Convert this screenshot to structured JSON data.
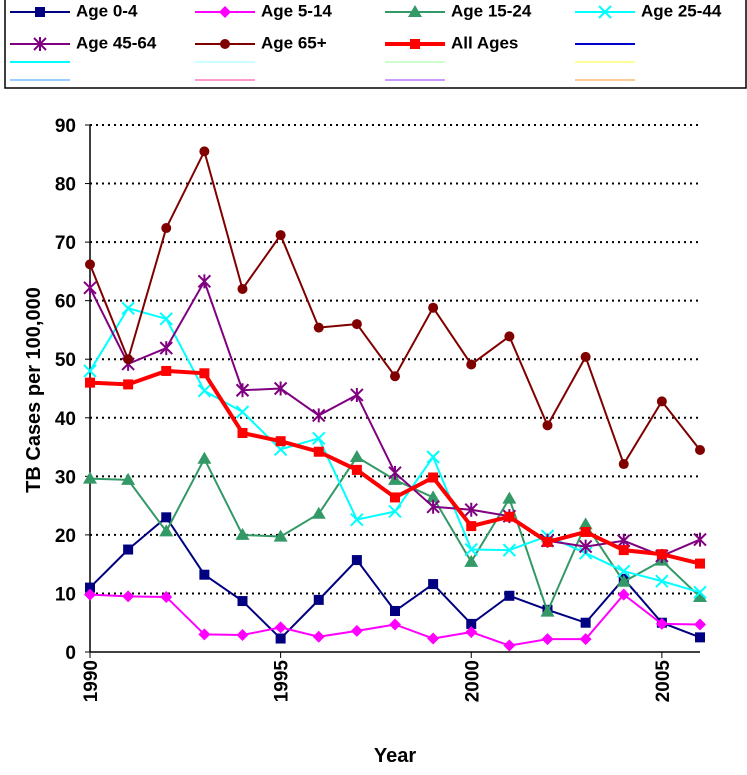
{
  "chart_data": {
    "type": "line",
    "x_label": "Year",
    "y_label": "TB Cases per 100,000",
    "x": [
      1990,
      1991,
      1992,
      1993,
      1994,
      1995,
      1996,
      1997,
      1998,
      1999,
      2000,
      2001,
      2002,
      2003,
      2004,
      2005,
      2006
    ],
    "xlim": [
      1990,
      2006
    ],
    "xticks": [
      1990,
      1995,
      2000,
      2005
    ],
    "ylim": [
      0,
      90
    ],
    "yticks": [
      0,
      10,
      20,
      30,
      40,
      50,
      60,
      70,
      80,
      90
    ],
    "grid": true,
    "series": [
      {
        "name": "Age 0-4",
        "color": "#000080",
        "marker": "square",
        "values": [
          11,
          17.5,
          23,
          13.2,
          8.7,
          2.3,
          8.9,
          15.7,
          7,
          11.6,
          4.8,
          9.6,
          7.2,
          5,
          12.5,
          5,
          2.5
        ]
      },
      {
        "name": "Age 5-14",
        "color": "#ff00ff",
        "marker": "diamond",
        "values": [
          9.8,
          9.5,
          9.4,
          3,
          2.9,
          4.2,
          2.6,
          3.6,
          4.7,
          2.3,
          3.4,
          1.1,
          2.2,
          2.2,
          9.8,
          4.8,
          4.7
        ]
      },
      {
        "name": "Age 15-24",
        "color": "#339966",
        "marker": "triangle",
        "values": [
          29.6,
          29.4,
          20.6,
          33,
          20,
          19.7,
          23.6,
          33.3,
          29.4,
          26.4,
          15.4,
          26.2,
          6.9,
          21.8,
          12,
          15.6,
          9.4
        ]
      },
      {
        "name": "Age 25-44",
        "color": "#00ffff",
        "marker": "x",
        "values": [
          48,
          58.7,
          56.9,
          44.6,
          41,
          34.6,
          36.5,
          22.6,
          24,
          33.3,
          17.5,
          17.4,
          19.8,
          16.9,
          13.8,
          12.1,
          10.2
        ]
      },
      {
        "name": "Age 45-64",
        "color": "#800080",
        "marker": "star",
        "values": [
          62.2,
          49.2,
          51.9,
          63.3,
          44.7,
          45,
          40.4,
          43.9,
          30.6,
          24.8,
          24.3,
          23.2,
          19,
          18,
          19,
          16.4,
          19.2
        ]
      },
      {
        "name": "Age 65+",
        "color": "#800000",
        "marker": "circle",
        "values": [
          66.2,
          50,
          72.4,
          85.5,
          62,
          71.2,
          55.4,
          56,
          47.1,
          58.8,
          49.1,
          53.9,
          38.7,
          50.4,
          32.1,
          42.8,
          34.5
        ]
      },
      {
        "name": "All Ages",
        "color": "#ff0000",
        "marker": "square",
        "line_width": 4,
        "values": [
          46,
          45.7,
          48,
          47.6,
          37.4,
          36,
          34.2,
          31.1,
          26.4,
          29.8,
          21.5,
          23.1,
          18.8,
          20.5,
          17.4,
          16.7,
          15.1
        ]
      }
    ]
  }
}
